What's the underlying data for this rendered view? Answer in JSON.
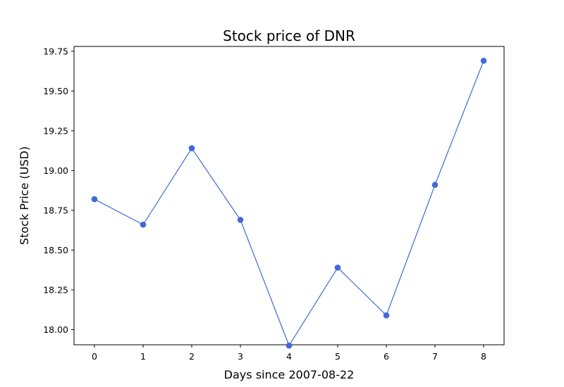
{
  "chart_data": {
    "type": "line",
    "title": "Stock price of DNR",
    "xlabel": "Days since 2007-08-22",
    "ylabel": "Stock Price (USD)",
    "x": [
      0,
      1,
      2,
      3,
      4,
      5,
      6,
      7,
      8
    ],
    "xticks": [
      0,
      1,
      2,
      3,
      4,
      5,
      6,
      7,
      8
    ],
    "xlim": [
      -0.42,
      8.42
    ],
    "ylim": [
      17.905,
      19.78
    ],
    "yticks": [
      "18.00",
      "18.25",
      "18.50",
      "18.75",
      "19.00",
      "19.25",
      "19.50",
      "19.75"
    ],
    "grid": false,
    "series": [
      {
        "values": [
          18.82,
          18.66,
          19.14,
          18.69,
          17.9,
          18.39,
          18.09,
          18.91,
          19.69
        ],
        "color": "#4169d8"
      }
    ]
  }
}
